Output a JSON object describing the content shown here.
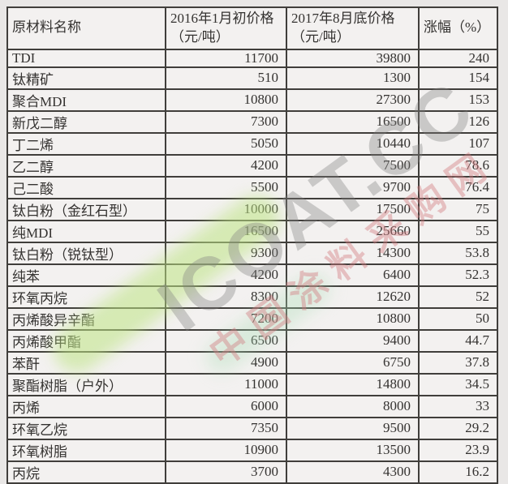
{
  "table": {
    "headers": [
      "原材料名称",
      "2016年1月初价格（元/吨）",
      "2017年8月底价格（元/吨）",
      "涨幅（%）"
    ],
    "rows": [
      [
        "TDI",
        "11700",
        "39800",
        "240"
      ],
      [
        "钛精矿",
        "510",
        "1300",
        "154"
      ],
      [
        "聚合MDI",
        "10800",
        "27300",
        "153"
      ],
      [
        "新戊二醇",
        "7300",
        "16500",
        "126"
      ],
      [
        "丁二烯",
        "5050",
        "10440",
        "107"
      ],
      [
        "乙二醇",
        "4200",
        "7500",
        "78.6"
      ],
      [
        "己二酸",
        "5500",
        "9700",
        "76.4"
      ],
      [
        "钛白粉（金红石型）",
        "10000",
        "17500",
        "75"
      ],
      [
        "纯MDI",
        "16500",
        "25660",
        "55"
      ],
      [
        "钛白粉（锐钛型）",
        "9300",
        "14300",
        "53.8"
      ],
      [
        "纯苯",
        "4200",
        "6400",
        "52.3"
      ],
      [
        "环氧丙烷",
        "8300",
        "12620",
        "52"
      ],
      [
        "丙烯酸异辛酯",
        "7200",
        "10800",
        "50"
      ],
      [
        "丙烯酸甲酯",
        "6500",
        "9400",
        "44.7"
      ],
      [
        "苯酐",
        "4900",
        "6750",
        "37.8"
      ],
      [
        "聚酯树脂（户外）",
        "11000",
        "14800",
        "34.5"
      ],
      [
        "丙烯",
        "6000",
        "8000",
        "33"
      ],
      [
        "环氧乙烷",
        "7350",
        "9500",
        "29.2"
      ],
      [
        "环氧树脂",
        "10900",
        "13500",
        "23.9"
      ],
      [
        "丙烷",
        "3700",
        "4300",
        "16.2"
      ]
    ]
  },
  "watermark": {
    "brand": "ICOAT.CC",
    "site_name": "中国涂料采购网"
  },
  "colors": {
    "cell_background": "#f3f1f0",
    "page_background": "#e9e7e6",
    "border": "#403e3b",
    "text": "#343230",
    "watermark_gray": "#808080",
    "watermark_red": "#d17a7e",
    "watermark_green": "#bee484"
  },
  "chart_data": {
    "type": "table",
    "title": "",
    "columns": [
      "原材料名称",
      "2016年1月初价格（元/吨）",
      "2017年8月底价格（元/吨）",
      "涨幅（%）"
    ],
    "rows": [
      {
        "material": "TDI",
        "price_jan_2016": 11700,
        "price_aug_2017": 39800,
        "increase_pct": 240
      },
      {
        "material": "钛精矿",
        "price_jan_2016": 510,
        "price_aug_2017": 1300,
        "increase_pct": 154
      },
      {
        "material": "聚合MDI",
        "price_jan_2016": 10800,
        "price_aug_2017": 27300,
        "increase_pct": 153
      },
      {
        "material": "新戊二醇",
        "price_jan_2016": 7300,
        "price_aug_2017": 16500,
        "increase_pct": 126
      },
      {
        "material": "丁二烯",
        "price_jan_2016": 5050,
        "price_aug_2017": 10440,
        "increase_pct": 107
      },
      {
        "material": "乙二醇",
        "price_jan_2016": 4200,
        "price_aug_2017": 7500,
        "increase_pct": 78.6
      },
      {
        "material": "己二酸",
        "price_jan_2016": 5500,
        "price_aug_2017": 9700,
        "increase_pct": 76.4
      },
      {
        "material": "钛白粉（金红石型）",
        "price_jan_2016": 10000,
        "price_aug_2017": 17500,
        "increase_pct": 75
      },
      {
        "material": "纯MDI",
        "price_jan_2016": 16500,
        "price_aug_2017": 25660,
        "increase_pct": 55
      },
      {
        "material": "钛白粉（锐钛型）",
        "price_jan_2016": 9300,
        "price_aug_2017": 14300,
        "increase_pct": 53.8
      },
      {
        "material": "纯苯",
        "price_jan_2016": 4200,
        "price_aug_2017": 6400,
        "increase_pct": 52.3
      },
      {
        "material": "环氧丙烷",
        "price_jan_2016": 8300,
        "price_aug_2017": 12620,
        "increase_pct": 52
      },
      {
        "material": "丙烯酸异辛酯",
        "price_jan_2016": 7200,
        "price_aug_2017": 10800,
        "increase_pct": 50
      },
      {
        "material": "丙烯酸甲酯",
        "price_jan_2016": 6500,
        "price_aug_2017": 9400,
        "increase_pct": 44.7
      },
      {
        "material": "苯酐",
        "price_jan_2016": 4900,
        "price_aug_2017": 6750,
        "increase_pct": 37.8
      },
      {
        "material": "聚酯树脂（户外）",
        "price_jan_2016": 11000,
        "price_aug_2017": 14800,
        "increase_pct": 34.5
      },
      {
        "material": "丙烯",
        "price_jan_2016": 6000,
        "price_aug_2017": 8000,
        "increase_pct": 33
      },
      {
        "material": "环氧乙烷",
        "price_jan_2016": 7350,
        "price_aug_2017": 9500,
        "increase_pct": 29.2
      },
      {
        "material": "环氧树脂",
        "price_jan_2016": 10900,
        "price_aug_2017": 13500,
        "increase_pct": 23.9
      },
      {
        "material": "丙烷",
        "price_jan_2016": 3700,
        "price_aug_2017": 4300,
        "increase_pct": 16.2
      }
    ]
  }
}
